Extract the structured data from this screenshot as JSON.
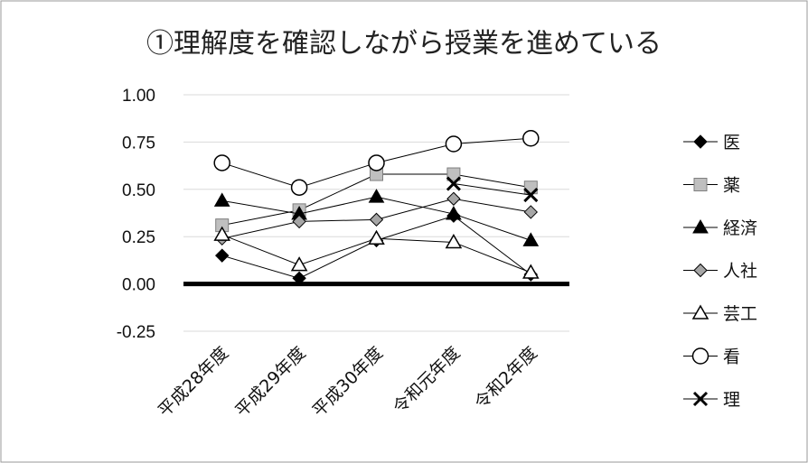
{
  "chart_data": {
    "type": "line",
    "title": "①理解度を確認しながら授業を進めている",
    "xlabel": "",
    "ylabel": "",
    "categories": [
      "平成28年度",
      "平成29年度",
      "平成30年度",
      "令和元年度",
      "令和2年度"
    ],
    "ylim": [
      -0.25,
      1.0
    ],
    "yticks": [
      "1.00",
      "0.75",
      "0.50",
      "0.25",
      "0.00",
      "-0.25"
    ],
    "ytick_values": [
      1.0,
      0.75,
      0.5,
      0.25,
      0.0,
      -0.25
    ],
    "grid": true,
    "legend_position": "right",
    "series": [
      {
        "name": "医",
        "marker": "diamond-filled",
        "color": "#000000",
        "values": [
          0.15,
          0.03,
          0.23,
          0.36,
          0.05
        ]
      },
      {
        "name": "薬",
        "marker": "square-gray",
        "color": "#000000",
        "values": [
          0.31,
          0.39,
          0.58,
          0.58,
          0.51
        ]
      },
      {
        "name": "経済",
        "marker": "triangle-filled",
        "color": "#000000",
        "values": [
          0.44,
          0.37,
          0.46,
          0.37,
          0.23
        ]
      },
      {
        "name": "人社",
        "marker": "diamond-gray",
        "color": "#000000",
        "values": [
          0.24,
          0.33,
          0.34,
          0.45,
          0.38
        ]
      },
      {
        "name": "芸工",
        "marker": "triangle-open",
        "color": "#000000",
        "values": [
          0.26,
          0.1,
          0.24,
          0.22,
          0.06
        ]
      },
      {
        "name": "看",
        "marker": "circle-open",
        "color": "#000000",
        "values": [
          0.64,
          0.51,
          0.64,
          0.74,
          0.77
        ]
      },
      {
        "name": "理",
        "marker": "x",
        "color": "#000000",
        "values": [
          null,
          null,
          null,
          0.53,
          0.47
        ]
      }
    ]
  }
}
